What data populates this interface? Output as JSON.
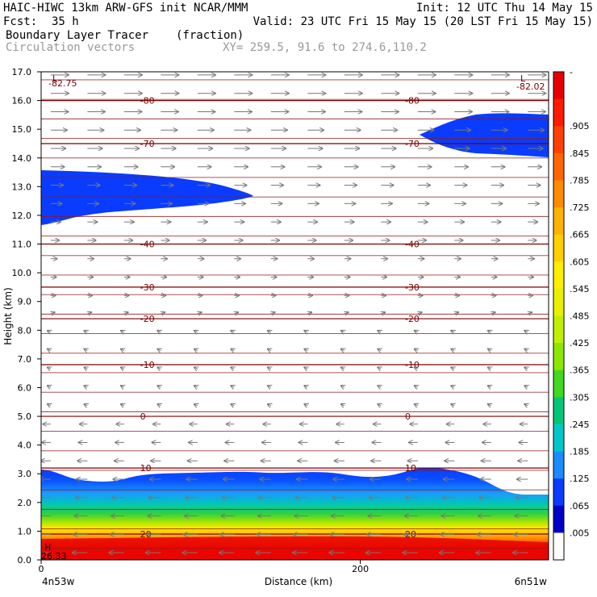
{
  "header": {
    "title_left": "HAIC-HIWC 13km ARW-GFS init    NCAR/MMM",
    "init": "Init: 12 UTC Thu 14 May 15",
    "fcst_label": "Fcst:",
    "fcst_value": "35 h",
    "valid": "Valid: 23 UTC Fri 15 May 15 (20 LST Fri 15 May 15)",
    "field_name": "Boundary Layer Tracer",
    "field_unit": "(fraction)",
    "overlay_name": "Circulation vectors",
    "xy_range": "XY= 259.5, 91.6 to 274.6,110.2"
  },
  "chart_data": {
    "type": "heatmap",
    "xlabel": "Distance (km)",
    "ylabel": "Height (km)",
    "xlim": [
      0,
      318
    ],
    "ylim": [
      0.0,
      17.0
    ],
    "x_ticks": [
      {
        "value": 0,
        "label": "0"
      },
      {
        "value": 200,
        "label": "200"
      }
    ],
    "x_end_labels": {
      "left": "4n53w",
      "right": "6n51w"
    },
    "y_ticks": [
      0.0,
      1.0,
      2.0,
      3.0,
      4.0,
      5.0,
      6.0,
      7.0,
      8.0,
      9.0,
      10.0,
      11.0,
      12.0,
      13.0,
      14.0,
      15.0,
      16.0,
      17.0
    ],
    "y_tick_labels": [
      "0.0",
      "1.0",
      "2.0",
      "3.0",
      "4.0",
      "5.0",
      "6.0",
      "7.0",
      "8.0",
      "9.0",
      "10.0",
      "11.0",
      "12.0",
      "13.0",
      "14.0",
      "15.0",
      "16.0",
      "17.0"
    ],
    "colorbar": {
      "labels": [
        ".905",
        ".845",
        ".785",
        ".725",
        ".665",
        ".605",
        ".545",
        ".485",
        ".425",
        ".365",
        ".305",
        ".245",
        ".185",
        ".125",
        ".065",
        ".005"
      ],
      "colors": [
        "#e80000",
        "#ff1a00",
        "#ff4000",
        "#ff6600",
        "#ff8c00",
        "#ffb300",
        "#ffd000",
        "#ffee00",
        "#e8f000",
        "#c0f000",
        "#8ce600",
        "#40d820",
        "#00c878",
        "#00c8c8",
        "#1a8cff",
        "#0a3cff",
        "#0000c8",
        "#ffffff"
      ]
    },
    "temperature_contours": [
      {
        "value": -80,
        "height_km": 16.0,
        "label": "-80"
      },
      {
        "value": -70,
        "height_km": 14.5,
        "label": "-70"
      },
      {
        "value": -40,
        "height_km": 11.0,
        "label": "-40"
      },
      {
        "value": -30,
        "height_km": 9.5,
        "label": "-30"
      },
      {
        "value": -20,
        "height_km": 8.4,
        "label": "-20"
      },
      {
        "value": -10,
        "height_km": 6.8,
        "label": "-10"
      },
      {
        "value": 0,
        "height_km": 5.0,
        "label": "0"
      },
      {
        "value": 10,
        "height_km": 3.2,
        "label": "10"
      },
      {
        "value": 20,
        "height_km": 0.9,
        "label": "20"
      }
    ],
    "extrema": [
      {
        "type": "L",
        "value": "-82.75",
        "side": "left"
      },
      {
        "type": "L",
        "value": "-82.02",
        "side": "right"
      },
      {
        "type": "H",
        "value": "26.33",
        "side": "left"
      }
    ],
    "tracer_layers": [
      {
        "name": "upper-left blob",
        "x_range_km": [
          0,
          130
        ],
        "height_range_km": [
          11.8,
          13.5
        ]
      },
      {
        "name": "upper-right blob",
        "x_range_km": [
          230,
          318
        ],
        "height_range_km": [
          14.3,
          15.5
        ]
      },
      {
        "name": "boundary layer",
        "x_range_km": [
          0,
          318
        ],
        "top_height_km": [
          3.1,
          2.8,
          3.0,
          3.2,
          3.0,
          3.2,
          2.4
        ]
      }
    ]
  }
}
